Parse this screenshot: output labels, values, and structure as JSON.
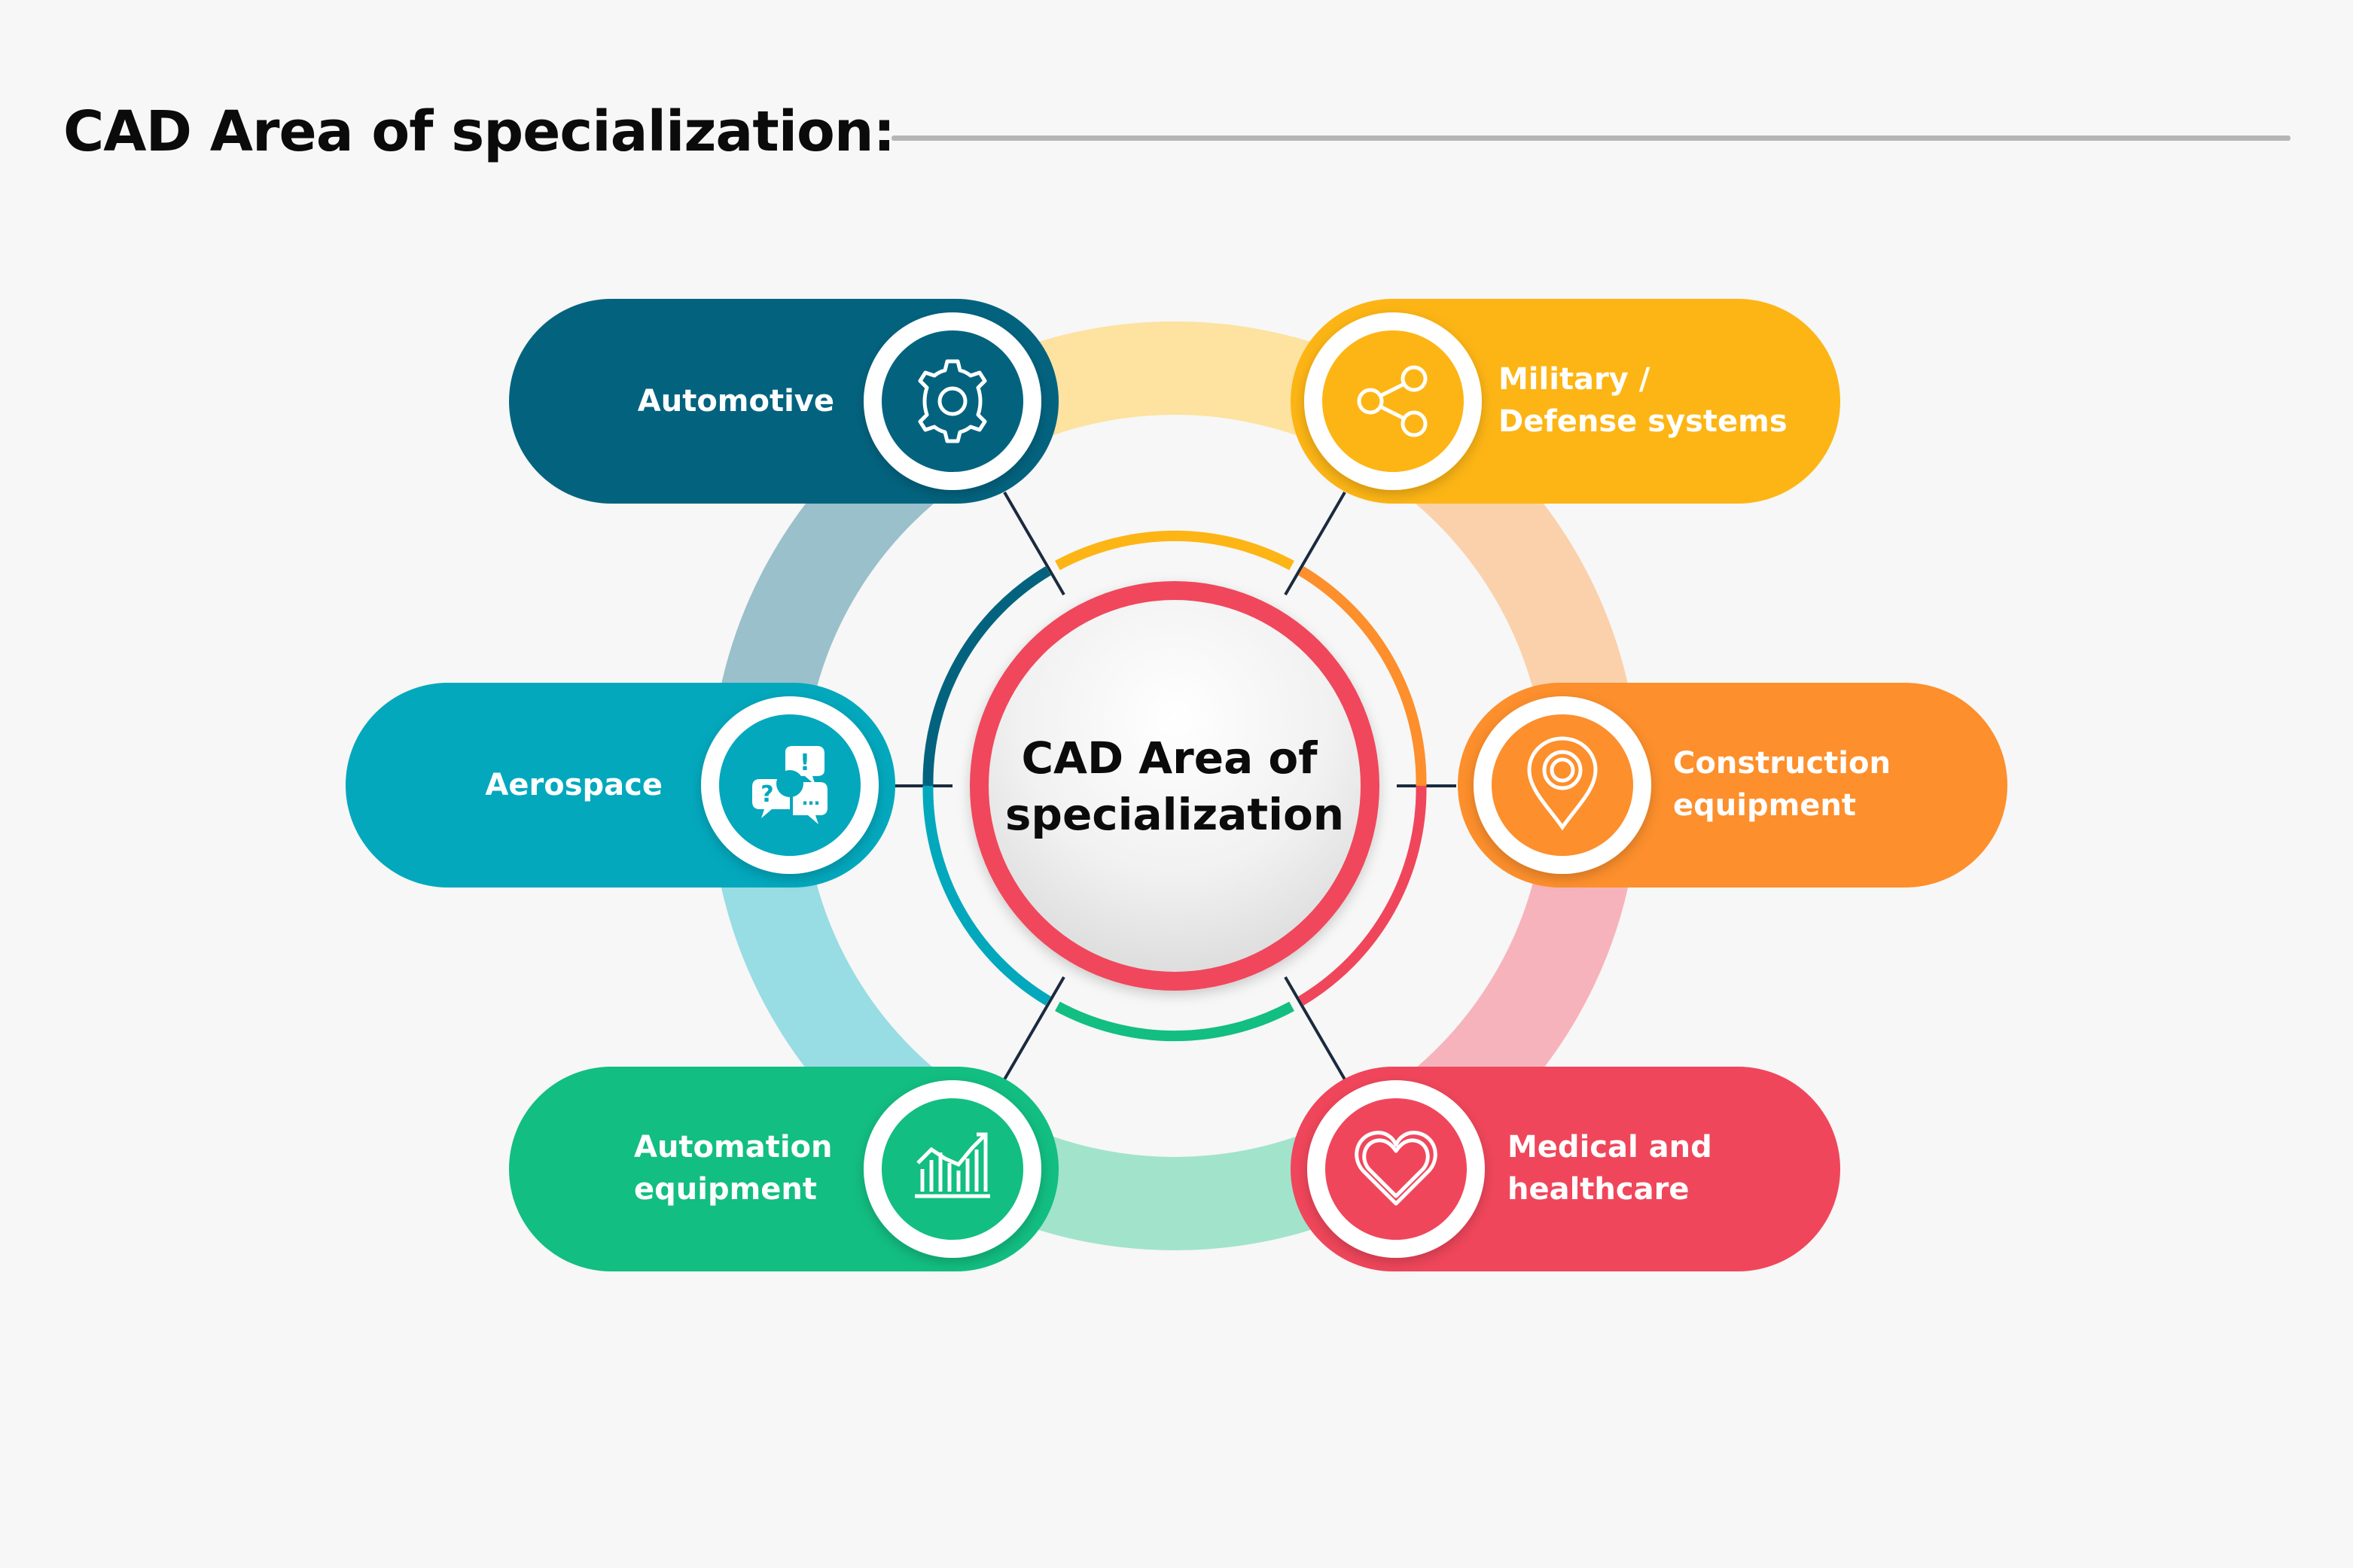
{
  "title": "CAD Area of specialization:",
  "center": {
    "line1": "CAD Area of",
    "line2": "specialization"
  },
  "colors": {
    "automotive": "#03637f",
    "military": "#fdb515",
    "aerospace": "#03a8bd",
    "construction": "#fd8f2c",
    "automation": "#12be82",
    "medical": "#f0465b"
  },
  "nodes": [
    {
      "id": "automotive",
      "lines": [
        "Automotive"
      ],
      "icon": "gear-icon"
    },
    {
      "id": "military",
      "lines": [
        "Military /",
        "Defense systems"
      ],
      "icon": "share-icon"
    },
    {
      "id": "aerospace",
      "lines": [
        "Aerospace"
      ],
      "icon": "chat-bubbles-icon"
    },
    {
      "id": "construction",
      "lines": [
        "Construction",
        "equipment"
      ],
      "icon": "location-pin-icon"
    },
    {
      "id": "automation",
      "lines": [
        "Automation",
        "equipment"
      ],
      "icon": "bar-chart-icon"
    },
    {
      "id": "medical",
      "lines": [
        "Medical and",
        "healthcare"
      ],
      "icon": "heart-icon"
    }
  ]
}
